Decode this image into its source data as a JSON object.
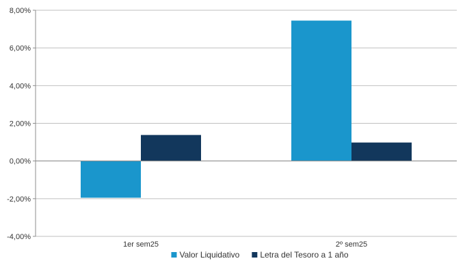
{
  "chart_data": {
    "type": "bar",
    "title": "",
    "xlabel": "",
    "ylabel": "",
    "categories": [
      "1er sem25",
      "2º sem25"
    ],
    "series": [
      {
        "name": "Valor Liquidativo",
        "values": [
          -1.95,
          7.45
        ],
        "color": "#1a96cc"
      },
      {
        "name": "Letra del Tesoro a 1 año",
        "values": [
          1.38,
          0.98
        ],
        "color": "#12375c"
      }
    ],
    "ylim": [
      -4,
      8
    ],
    "yticks": [
      -4,
      -2,
      0,
      2,
      4,
      6,
      8
    ],
    "ytick_labels": [
      "-4,00%",
      "-2,00%",
      "0,00%",
      "2,00%",
      "4,00%",
      "6,00%",
      "8,00%"
    ],
    "grid": true,
    "legend_position": "bottom"
  }
}
